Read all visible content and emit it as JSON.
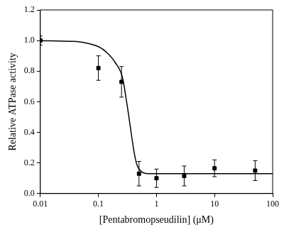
{
  "chart_data": {
    "type": "scatter",
    "x_label": "[Pentabromopseudilin] (μM)",
    "y_label": "Relative ATPase activity",
    "log": "x",
    "grid": false,
    "xlim": [
      0.01,
      100
    ],
    "xticks": [
      0.01,
      0.1,
      1,
      10,
      100
    ],
    "ylim": [
      0,
      1.2
    ],
    "yticks": [
      {
        "value": 0,
        "label": "0.0"
      },
      0.2,
      0.4,
      0.6,
      0.8,
      {
        "value": 1,
        "label": "1.0"
      },
      1.2
    ],
    "series": [
      {
        "type": "scatter",
        "marker": "square",
        "color": "#000000",
        "x": [
          0.01,
          0.1,
          0.25,
          0.5,
          1,
          3,
          10,
          50
        ],
        "values": [
          1.0,
          0.82,
          0.73,
          0.13,
          0.1,
          0.115,
          0.165,
          0.15
        ],
        "error": [
          0.03,
          0.08,
          0.1,
          0.08,
          0.06,
          0.065,
          0.055,
          0.065
        ]
      },
      {
        "type": "line",
        "line_style": "solid",
        "color": "#000000",
        "x": [
          0.01,
          0.03,
          0.05,
          0.1,
          0.15,
          0.2,
          0.25,
          0.3,
          0.35,
          0.4,
          0.45,
          0.5,
          0.6,
          0.8,
          1,
          10,
          100
        ],
        "values": [
          1.0,
          0.995,
          0.99,
          0.96,
          0.91,
          0.85,
          0.78,
          0.62,
          0.45,
          0.3,
          0.2,
          0.16,
          0.135,
          0.13,
          0.13,
          0.13,
          0.13
        ]
      }
    ]
  }
}
